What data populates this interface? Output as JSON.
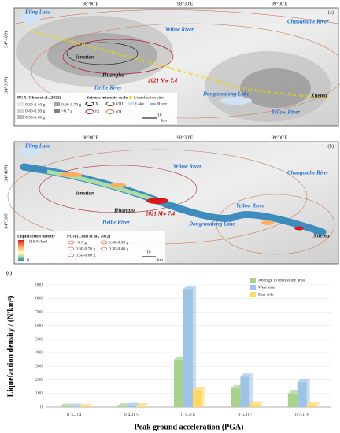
{
  "maps": {
    "panel_a": {
      "label": "(a)",
      "lon": [
        "98°00'E",
        "98°30'E",
        "99°00'E"
      ],
      "lat": [
        "34°40'N",
        "34°30'N"
      ],
      "places": [
        "Eling Lake",
        "Yellow River",
        "Changmahe River",
        "Yematan",
        "Huanghe",
        "Heihe River",
        "2021 Mw 7.4",
        "Dongcaoalong Lake",
        "Xuema",
        "Yellow River"
      ],
      "legend": {
        "pga_title": "PGA (Chen et al., 2022)",
        "pga": [
          "0.30-0.40 g",
          "0.40-0.50 g",
          "0.50-0.60 g",
          "0.60-0.70 g",
          ">0.7 g"
        ],
        "intensity_title": "Seismic intensity scale",
        "intensity": [
          "X",
          "IX",
          "VIII",
          "VII"
        ],
        "sites": "Liquefaction sites",
        "lake": "Lake",
        "river": "River",
        "scale": "10",
        "unit": "km"
      }
    },
    "panel_b": {
      "label": "(b)",
      "lon": [
        "98°00'E",
        "98°30'E",
        "99°00'E"
      ],
      "lat": [
        "34°40'N",
        "34°30'N"
      ],
      "places": [
        "Eling Lake",
        "Yellow River",
        "Changmahe River",
        "Yematan",
        "Huanghe",
        "Heihe River",
        "2021 Mw 7.4",
        "Dongcaoalong Lake",
        "Xuema",
        "Yellow River"
      ],
      "legend": {
        "density_title": "Liquefaction density",
        "max": "1118 N/km²",
        "min": "0",
        "pga_title": "PGA (Chen et al., 2022)",
        "pga": [
          ">0.7 g",
          "0.60-0.70 g",
          "0.50-0.60 g",
          "0.40-0.50 g",
          "0.30-0.40 g"
        ],
        "scale": "10",
        "unit": "km"
      }
    }
  },
  "chart_data": {
    "type": "bar",
    "label": "(c)",
    "y_label": "Liquefaction density / (N/km²)",
    "x_label": "Peak ground acceleration (PGA)",
    "categories": [
      "0.3–0.4",
      "0.4–0.5",
      "0.5–0.6",
      "0.6–0.7",
      "0.7–0.8"
    ],
    "series": [
      {
        "name": "Average in total study area",
        "color": "#a9d18e",
        "values": [
          2,
          5,
          350,
          140,
          100
        ]
      },
      {
        "name": "West side",
        "color": "#9dc3e6",
        "values": [
          2,
          8,
          870,
          225,
          185
        ]
      },
      {
        "name": "East side",
        "color": "#ffd966",
        "values": [
          1,
          5,
          125,
          20,
          15
        ]
      }
    ],
    "ylim": [
      0,
      900
    ],
    "yticks": [
      0,
      100,
      200,
      300,
      400,
      500,
      600,
      700,
      800,
      900
    ],
    "grid": true,
    "legend": "top-right"
  }
}
